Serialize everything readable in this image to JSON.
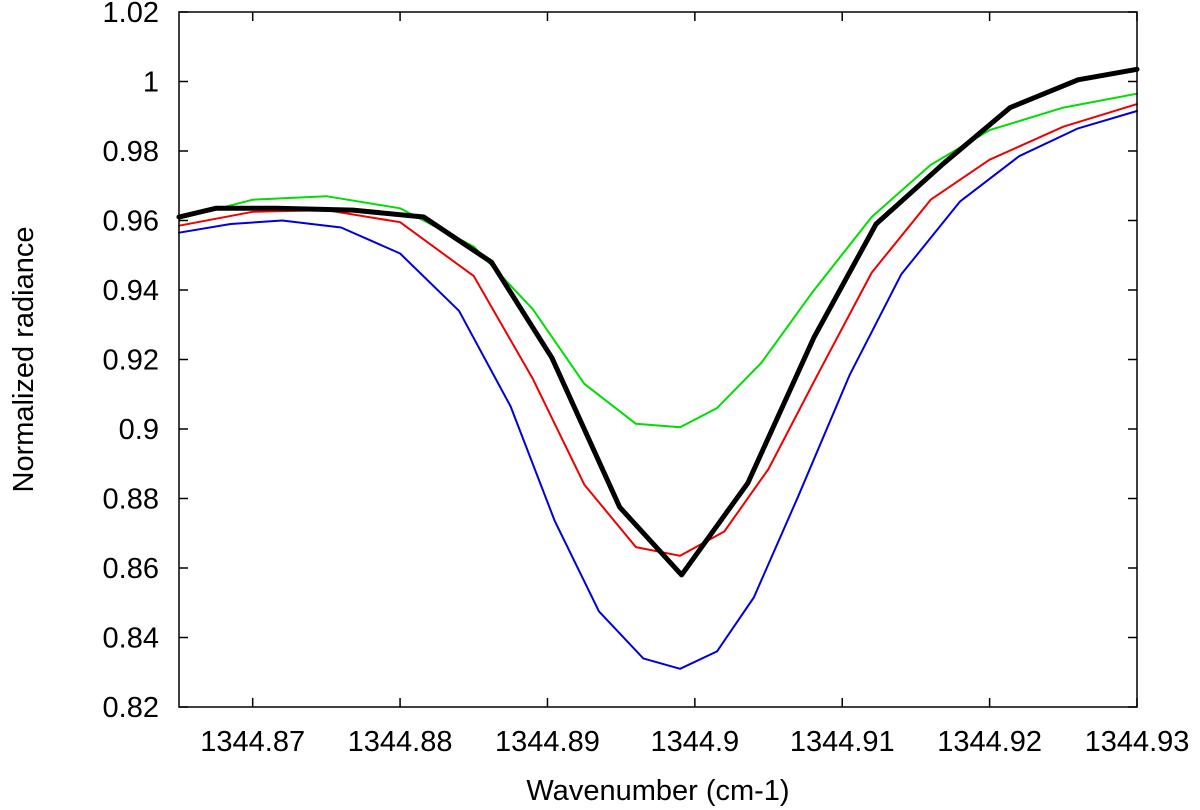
{
  "chart_data": {
    "type": "line",
    "title": "",
    "xlabel": "Wavenumber (cm-1)",
    "ylabel": "Normalized radiance",
    "xlim": [
      1344.865,
      1344.93
    ],
    "ylim": [
      0.82,
      1.02
    ],
    "grid": false,
    "legend": "none",
    "x_ticks": [
      1344.87,
      1344.88,
      1344.89,
      1344.9,
      1344.91,
      1344.92,
      1344.93
    ],
    "x_tick_labels": [
      "1344.87",
      "1344.88",
      "1344.89",
      "1344.9",
      "1344.91",
      "1344.92",
      "1344.93"
    ],
    "y_ticks": [
      0.82,
      0.84,
      0.86,
      0.88,
      0.9,
      0.92,
      0.94,
      0.96,
      0.98,
      1.0,
      1.02
    ],
    "y_tick_labels": [
      "0.82",
      "0.84",
      "0.86",
      "0.88",
      "0.9",
      "0.92",
      "0.94",
      "0.96",
      "0.98",
      "1",
      "1.02"
    ],
    "series": [
      {
        "color": "#000000",
        "width": 5,
        "x": [
          1344.865,
          1344.8675,
          1344.8716,
          1344.8768,
          1344.8816,
          1344.8862,
          1344.8903,
          1344.8949,
          1344.8991,
          1344.9036,
          1344.9081,
          1344.9123,
          1344.9169,
          1344.9214,
          1344.926,
          1344.93
        ],
        "y": [
          0.961,
          0.9635,
          0.9635,
          0.963,
          0.961,
          0.948,
          0.9205,
          0.8775,
          0.858,
          0.8845,
          0.9265,
          0.959,
          0.9765,
          0.9925,
          1.0005,
          1.0035
        ]
      },
      {
        "color": "#00dd00",
        "width": 2,
        "x": [
          1344.865,
          1344.87,
          1344.875,
          1344.88,
          1344.885,
          1344.889,
          1344.8925,
          1344.896,
          1344.899,
          1344.9015,
          1344.9045,
          1344.908,
          1344.912,
          1344.916,
          1344.92,
          1344.925,
          1344.93
        ],
        "y": [
          0.9605,
          0.966,
          0.967,
          0.9635,
          0.9525,
          0.9345,
          0.913,
          0.9015,
          0.9005,
          0.906,
          0.919,
          0.9395,
          0.961,
          0.976,
          0.986,
          0.9925,
          0.9965
        ]
      },
      {
        "color": "#ee0000",
        "width": 2,
        "x": [
          1344.865,
          1344.87,
          1344.875,
          1344.88,
          1344.885,
          1344.889,
          1344.8925,
          1344.896,
          1344.899,
          1344.902,
          1344.905,
          1344.9085,
          1344.912,
          1344.916,
          1344.92,
          1344.925,
          1344.93
        ],
        "y": [
          0.9585,
          0.9625,
          0.963,
          0.9595,
          0.944,
          0.9145,
          0.884,
          0.866,
          0.8635,
          0.8705,
          0.8885,
          0.917,
          0.945,
          0.966,
          0.9775,
          0.987,
          0.9935
        ]
      },
      {
        "color": "#0000dd",
        "width": 2,
        "x": [
          1344.865,
          1344.8685,
          1344.872,
          1344.876,
          1344.88,
          1344.884,
          1344.8875,
          1344.8905,
          1344.8935,
          1344.8965,
          1344.899,
          1344.9015,
          1344.904,
          1344.907,
          1344.9105,
          1344.914,
          1344.918,
          1344.922,
          1344.926,
          1344.93
        ],
        "y": [
          0.9565,
          0.959,
          0.96,
          0.958,
          0.9505,
          0.934,
          0.9065,
          0.8735,
          0.8475,
          0.834,
          0.831,
          0.836,
          0.8515,
          0.8805,
          0.9155,
          0.9445,
          0.9655,
          0.9785,
          0.9865,
          0.9915
        ]
      }
    ]
  }
}
